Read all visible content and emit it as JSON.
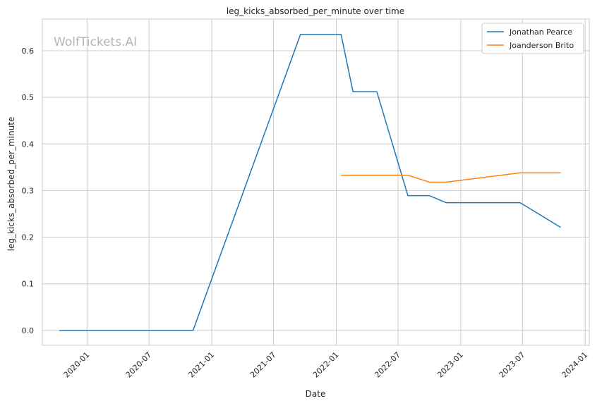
{
  "chart_data": {
    "type": "line",
    "title": "leg_kicks_absorbed_per_minute over time",
    "xlabel": "Date",
    "ylabel": "leg_kicks_absorbed_per_minute",
    "watermark": "WolfTickets.AI",
    "grid": true,
    "legend_position": "top-right",
    "x_ticks": [
      "2020-01",
      "2020-07",
      "2021-01",
      "2021-07",
      "2022-01",
      "2022-07",
      "2023-01",
      "2023-07",
      "2024-01"
    ],
    "y_ticks": [
      "0.0",
      "0.1",
      "0.2",
      "0.3",
      "0.4",
      "0.5",
      "0.6"
    ],
    "ylim": [
      -0.032,
      0.668
    ],
    "xlim": [
      "2019-08-23",
      "2024-01-13"
    ],
    "series": [
      {
        "name": "Jonathan Pearce",
        "color": "#1f77b4",
        "points": [
          [
            "2019-10-12",
            0.0
          ],
          [
            "2020-11-07",
            0.0
          ],
          [
            "2021-09-18",
            0.635
          ],
          [
            "2022-01-15",
            0.635
          ],
          [
            "2022-02-19",
            0.512
          ],
          [
            "2022-04-30",
            0.512
          ],
          [
            "2022-07-30",
            0.289
          ],
          [
            "2022-10-01",
            0.289
          ],
          [
            "2022-11-19",
            0.274
          ],
          [
            "2023-06-24",
            0.274
          ],
          [
            "2023-10-21",
            0.221
          ]
        ]
      },
      {
        "name": "Joanderson Brito",
        "color": "#ff7f0e",
        "points": [
          [
            "2022-01-15",
            0.333
          ],
          [
            "2022-07-30",
            0.333
          ],
          [
            "2022-10-01",
            0.318
          ],
          [
            "2022-11-19",
            0.318
          ],
          [
            "2023-06-24",
            0.338
          ],
          [
            "2023-10-21",
            0.338
          ]
        ]
      }
    ]
  }
}
